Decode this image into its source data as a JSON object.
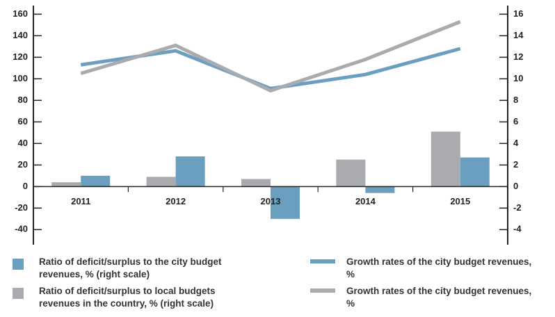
{
  "chart_data": {
    "type": "bar",
    "categories": [
      "2011",
      "2012",
      "2013",
      "2014",
      "2015"
    ],
    "series": [
      {
        "name": "Ratio of deficit/surplus to the city budget revenues, % (right scale)",
        "type": "bar",
        "axis": "y2",
        "color": "#6a9fc0",
        "values": [
          1.0,
          2.8,
          -3.0,
          -0.6,
          2.7
        ]
      },
      {
        "name": "Ratio of deficit/surplus to local budgets revenues in the country, % (right scale)",
        "type": "bar",
        "axis": "y2",
        "color": "#a9abae",
        "values": [
          0.4,
          0.9,
          0.7,
          2.5,
          5.1
        ]
      },
      {
        "name": "Growth rates of the city budget revenues, %",
        "type": "line",
        "color": "#6a9fc0",
        "values": [
          113,
          126,
          91,
          104,
          128
        ]
      },
      {
        "name": "Growth rates of the city budget revenues, %",
        "type": "line",
        "color": "#a9abae",
        "values": [
          105,
          131,
          89,
          118,
          153
        ]
      }
    ],
    "ylim": [
      -54,
      168
    ],
    "yticks": [
      -40,
      -20,
      0,
      20,
      40,
      60,
      80,
      100,
      120,
      140,
      160
    ],
    "y2lim": [
      -5.4,
      16.8
    ],
    "y2ticks": [
      -4,
      -2,
      0,
      2,
      4,
      6,
      8,
      10,
      12,
      14,
      16
    ]
  }
}
